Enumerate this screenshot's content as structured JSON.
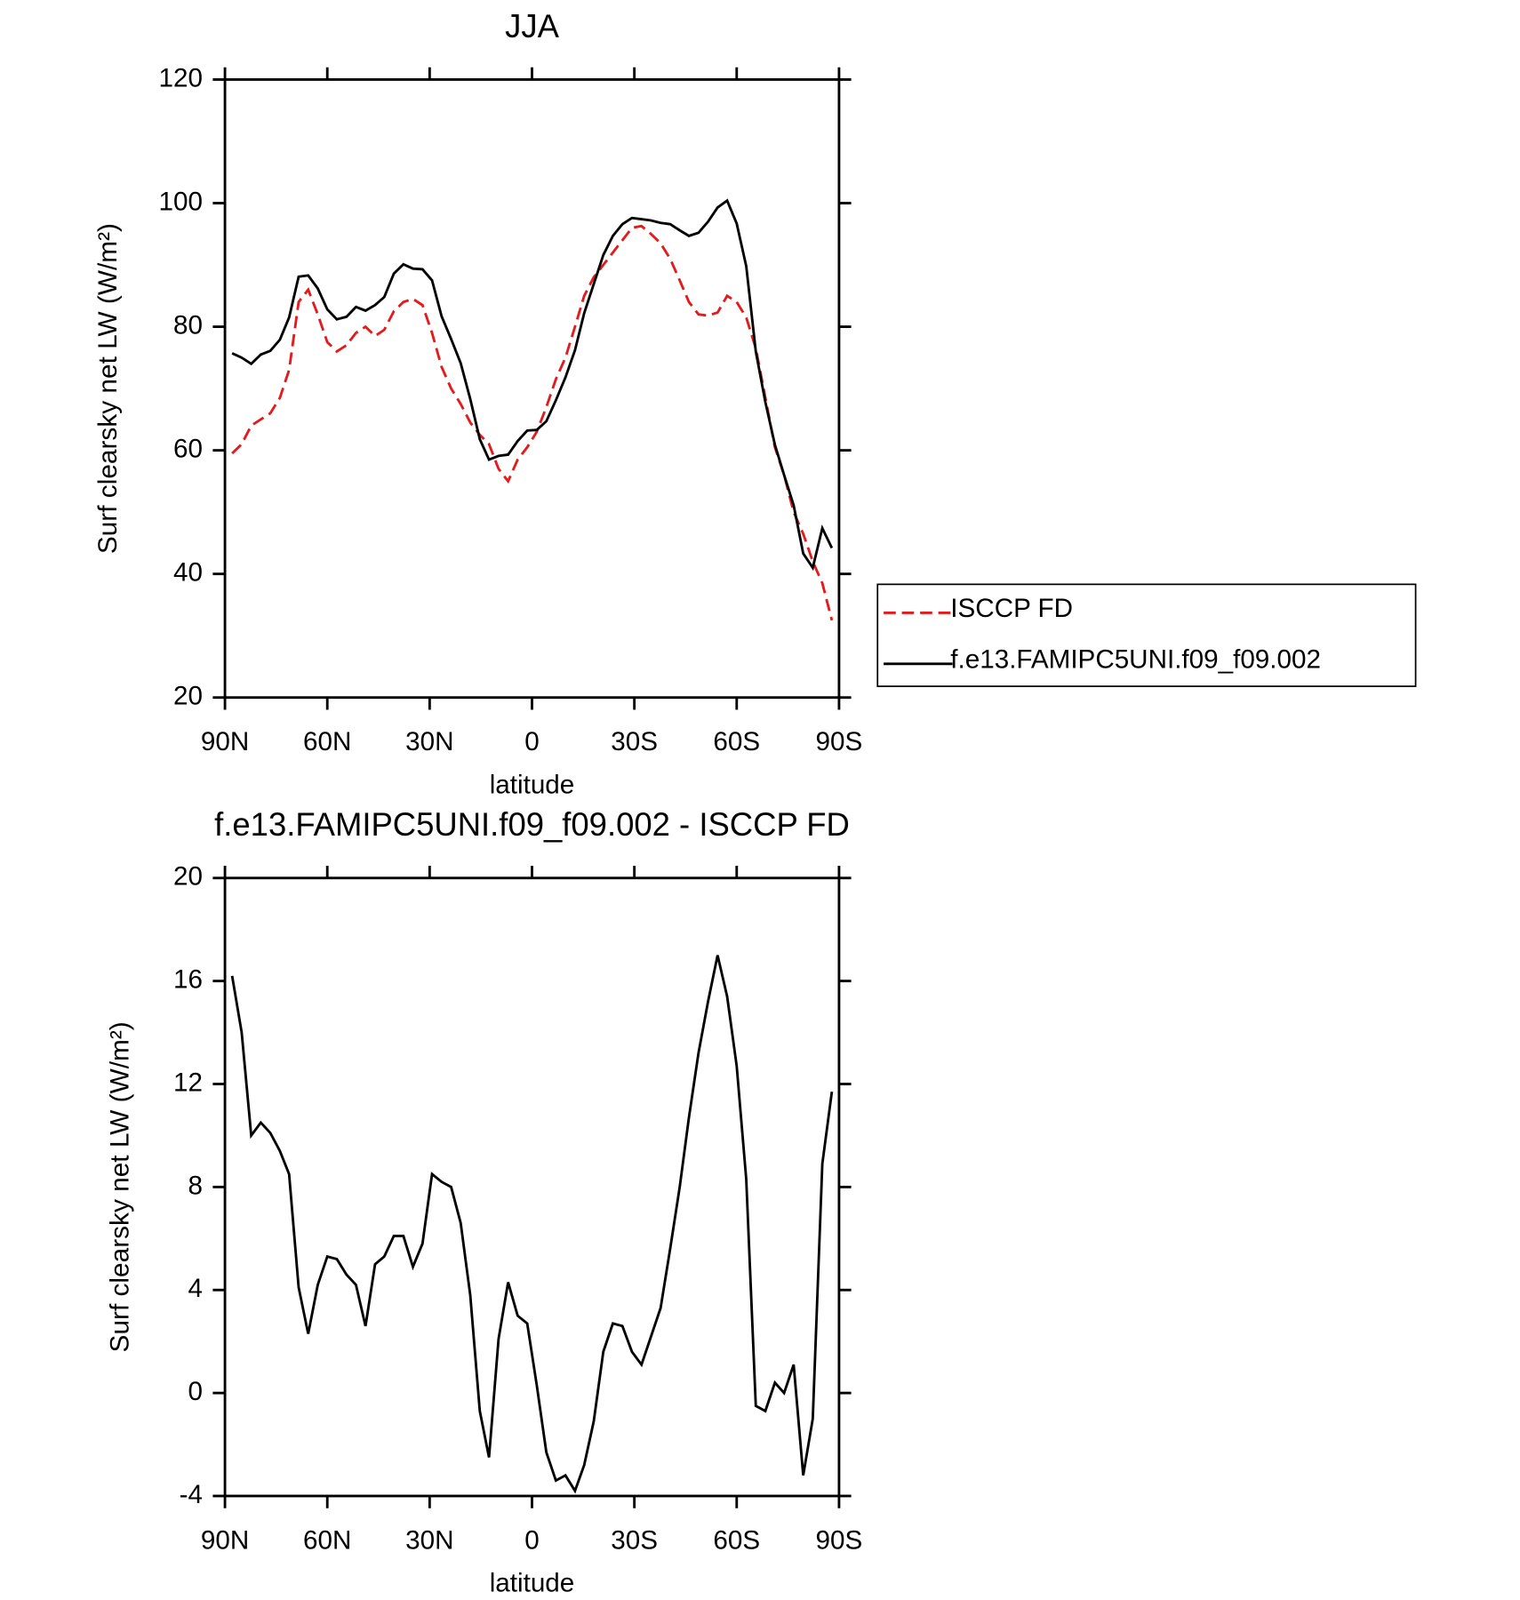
{
  "chart_data": [
    {
      "type": "line",
      "title": "JJA",
      "xlabel": "latitude",
      "ylabel": "Surf clearsky net LW (W/m²)",
      "x": [
        87.9,
        85.1,
        82.3,
        79.5,
        76.7,
        73.9,
        71.2,
        68.4,
        65.6,
        62.8,
        60.0,
        57.2,
        54.4,
        51.6,
        48.8,
        46.0,
        43.3,
        40.5,
        37.7,
        34.9,
        32.1,
        29.3,
        26.5,
        23.7,
        20.9,
        18.1,
        15.3,
        12.6,
        9.8,
        7.0,
        4.2,
        1.4,
        -1.4,
        -4.2,
        -7.0,
        -9.8,
        -12.6,
        -15.3,
        -18.1,
        -20.9,
        -23.7,
        -26.5,
        -29.3,
        -32.1,
        -34.9,
        -37.7,
        -40.5,
        -43.3,
        -46.0,
        -48.8,
        -51.6,
        -54.4,
        -57.2,
        -60.0,
        -62.8,
        -65.6,
        -68.4,
        -71.2,
        -73.9,
        -76.7,
        -79.5,
        -82.3,
        -85.1,
        -87.9
      ],
      "series": [
        {
          "name": "ISCCP FD",
          "color": "#e41a1c",
          "dash": true,
          "values": [
            59.5,
            61,
            64,
            65,
            66,
            68.5,
            73,
            84,
            86,
            82,
            77.5,
            76,
            77,
            79,
            80,
            78.5,
            79.5,
            82.5,
            84,
            84.5,
            83.5,
            79,
            73.5,
            70,
            67.5,
            64.5,
            62.5,
            61,
            57,
            55,
            58.5,
            60.5,
            63,
            67,
            71.5,
            75,
            80,
            85,
            88,
            90,
            92,
            94,
            96,
            96.3,
            95,
            93.5,
            91,
            87.5,
            84,
            82,
            81.8,
            82.3,
            85,
            84,
            81.5,
            76.5,
            68.5,
            60.5,
            56,
            50,
            46.5,
            42,
            38.5,
            32.5
          ]
        },
        {
          "name": "f.e13.FAMIPC5UNI.f09_f09.002",
          "color": "#000000",
          "dash": false,
          "values": [
            75.7,
            75,
            74,
            75.5,
            76.1,
            77.9,
            81.5,
            88.1,
            88.3,
            86.2,
            82.8,
            81.2,
            81.6,
            83.2,
            82.6,
            83.5,
            84.8,
            88.6,
            90.1,
            89.4,
            89.3,
            87.5,
            81.7,
            78,
            74.1,
            68.3,
            61.8,
            58.5,
            59.1,
            59.3,
            61.5,
            63.2,
            63.3,
            64.7,
            68.1,
            71.8,
            76.2,
            82.2,
            86.9,
            91.6,
            94.7,
            96.6,
            97.6,
            97.4,
            97.2,
            96.8,
            96.6,
            95.6,
            94.7,
            95.2,
            97,
            99.3,
            100.4,
            96.7,
            89.8,
            76,
            67.8,
            60.9,
            56,
            51.1,
            43.3,
            41,
            47.4,
            44.2
          ]
        }
      ],
      "xlim": [
        90,
        -90
      ],
      "xticks": [
        {
          "value": 90,
          "label": "90N"
        },
        {
          "value": 60,
          "label": "60N"
        },
        {
          "value": 30,
          "label": "30N"
        },
        0,
        {
          "value": -30,
          "label": "30S"
        },
        {
          "value": -60,
          "label": "60S"
        },
        {
          "value": -90,
          "label": "90S"
        }
      ],
      "ylim": [
        20,
        120
      ],
      "yticks": [
        20,
        40,
        60,
        80,
        100,
        120
      ],
      "legend": "right"
    },
    {
      "type": "line",
      "title": "f.e13.FAMIPC5UNI.f09_f09.002 - ISCCP FD",
      "xlabel": "latitude",
      "ylabel": "Surf clearsky net LW (W/m²)",
      "x": [
        87.9,
        85.1,
        82.3,
        79.5,
        76.7,
        73.9,
        71.2,
        68.4,
        65.6,
        62.8,
        60.0,
        57.2,
        54.4,
        51.6,
        48.8,
        46.0,
        43.3,
        40.5,
        37.7,
        34.9,
        32.1,
        29.3,
        26.5,
        23.7,
        20.9,
        18.1,
        15.3,
        12.6,
        9.8,
        7.0,
        4.2,
        1.4,
        -1.4,
        -4.2,
        -7.0,
        -9.8,
        -12.6,
        -15.3,
        -18.1,
        -20.9,
        -23.7,
        -26.5,
        -29.3,
        -32.1,
        -34.9,
        -37.7,
        -40.5,
        -43.3,
        -46.0,
        -48.8,
        -51.6,
        -54.4,
        -57.2,
        -60.0,
        -62.8,
        -65.6,
        -68.4,
        -71.2,
        -73.9,
        -76.7,
        -79.5,
        -82.3,
        -85.1,
        -87.9
      ],
      "color": "#000000",
      "values": [
        16.2,
        14,
        10,
        10.5,
        10.1,
        9.4,
        8.5,
        4.1,
        2.3,
        4.2,
        5.3,
        5.2,
        4.6,
        4.2,
        2.6,
        5.0,
        5.3,
        6.1,
        6.1,
        4.9,
        5.8,
        8.5,
        8.2,
        8.0,
        6.6,
        3.8,
        -0.7,
        -2.5,
        2.1,
        4.3,
        3.0,
        2.7,
        0.3,
        -2.3,
        -3.4,
        -3.2,
        -3.8,
        -2.8,
        -1.1,
        1.6,
        2.7,
        2.6,
        1.6,
        1.1,
        2.2,
        3.3,
        5.6,
        8.0,
        10.7,
        13.2,
        15.2,
        17.0,
        15.4,
        12.7,
        8.3,
        -0.5,
        -0.7,
        0.4,
        0.0,
        1.1,
        -3.2,
        -1.0,
        8.9,
        11.7
      ],
      "xlim": [
        90,
        -90
      ],
      "xticks": [
        {
          "value": 90,
          "label": "90N"
        },
        {
          "value": 60,
          "label": "60N"
        },
        {
          "value": 30,
          "label": "30N"
        },
        0,
        {
          "value": -30,
          "label": "30S"
        },
        {
          "value": -60,
          "label": "60S"
        },
        {
          "value": -90,
          "label": "90S"
        }
      ],
      "ylim": [
        -4,
        20
      ],
      "yticks": [
        -4,
        0,
        4,
        8,
        12,
        16,
        20
      ]
    }
  ]
}
